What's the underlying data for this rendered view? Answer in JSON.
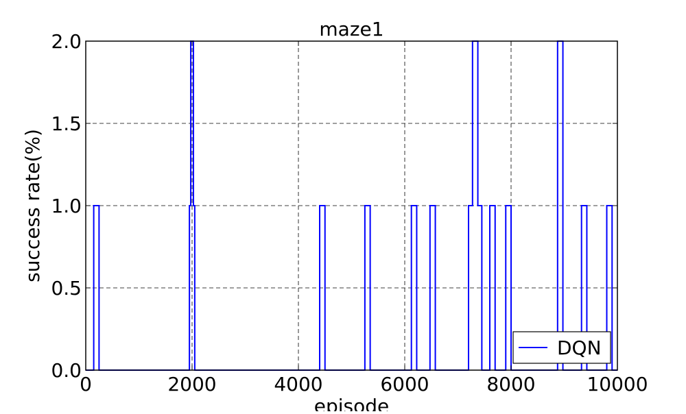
{
  "chart_data": {
    "type": "line",
    "title": "maze1",
    "xlabel": "episode",
    "ylabel": "success rate(%)",
    "xlim": [
      0,
      10000
    ],
    "ylim": [
      0,
      2.0
    ],
    "xticks": [
      "0",
      "2000",
      "4000",
      "6000",
      "8000",
      "10000"
    ],
    "yticks": [
      "0.0",
      "0.5",
      "1.0",
      "1.5",
      "2.0"
    ],
    "grid": true,
    "legend_position": "lower-right",
    "series": [
      {
        "name": "DQN",
        "color": "#0000ff",
        "x": [
          0,
          150,
          150,
          250,
          250,
          1950,
          1950,
          1975,
          1975,
          2025,
          2025,
          2050,
          2050,
          4400,
          4400,
          4500,
          4500,
          5250,
          5250,
          5350,
          5350,
          6125,
          6125,
          6225,
          6225,
          6475,
          6475,
          6575,
          6575,
          7200,
          7200,
          7275,
          7275,
          7375,
          7375,
          7450,
          7450,
          7600,
          7600,
          7700,
          7700,
          7900,
          7900,
          8000,
          8000,
          8875,
          8875,
          8975,
          8975,
          9325,
          9325,
          9425,
          9425,
          9800,
          9800,
          9900,
          9900,
          10000
        ],
        "y": [
          0,
          0,
          1,
          1,
          0,
          0,
          1,
          1,
          2,
          2,
          1,
          1,
          0,
          0,
          1,
          1,
          0,
          0,
          1,
          1,
          0,
          0,
          1,
          1,
          0,
          0,
          1,
          1,
          0,
          0,
          1,
          1,
          2,
          2,
          1,
          1,
          0,
          0,
          1,
          1,
          0,
          0,
          1,
          1,
          0,
          0,
          2,
          2,
          0,
          0,
          1,
          1,
          0,
          0,
          1,
          1,
          0,
          0
        ]
      }
    ]
  }
}
